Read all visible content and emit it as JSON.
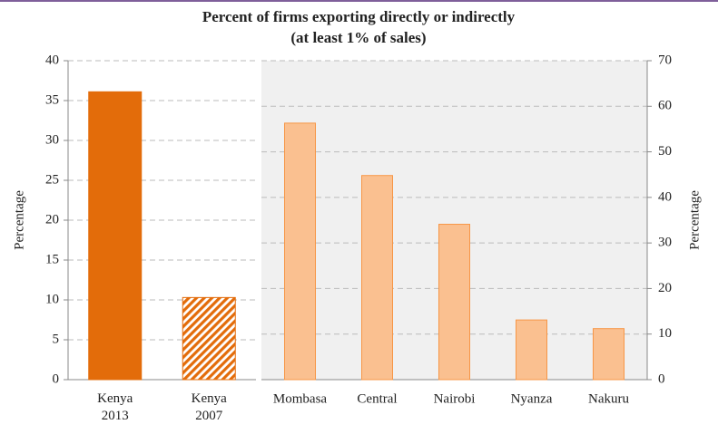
{
  "chart_data": [
    {
      "type": "bar",
      "title": "Percent of firms exporting directly or indirectly",
      "subtitle": "(at least 1% of sales)",
      "y_label": "Percentage",
      "axis_side": "left",
      "categories": [
        "Kenya 2013",
        "Kenya 2007"
      ],
      "values": [
        36.1,
        10.3
      ],
      "color": "#e36c0a",
      "hatch": [
        false,
        true
      ],
      "ylim": [
        0,
        40
      ],
      "yticks": [
        0,
        5,
        10,
        15,
        20,
        25,
        30,
        35,
        40
      ],
      "grid": true,
      "background": "#ffffff"
    },
    {
      "type": "bar",
      "y_label": "Percentage",
      "axis_side": "right",
      "categories": [
        "Mombasa",
        "Central",
        "Nairobi",
        "Nyanza",
        "Nakuru"
      ],
      "values": [
        56.3,
        44.8,
        34.1,
        13.1,
        11.2
      ],
      "color": "#fac090",
      "hatch": [
        false,
        false,
        false,
        false,
        false
      ],
      "ylim": [
        0,
        70
      ],
      "yticks": [
        0,
        10,
        20,
        30,
        40,
        50,
        60,
        70
      ],
      "grid": true,
      "background": "#f0f0f0"
    }
  ]
}
